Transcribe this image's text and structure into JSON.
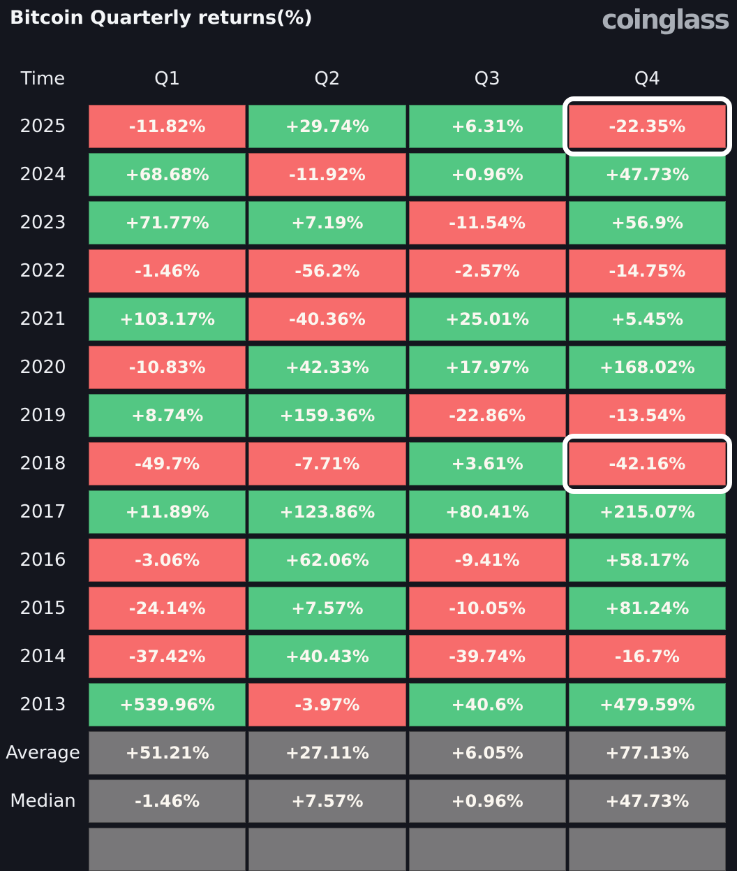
{
  "header": {
    "title": "Bitcoin Quarterly returns(%)",
    "logo": "coinglass"
  },
  "colors": {
    "positive": "#53c783",
    "negative": "#f76c6c",
    "aggregate_gray": "#787779",
    "background": "#14161e",
    "highlight_ring": "#ffffff",
    "cell_text": "#fbf7f0"
  },
  "table": {
    "columns": [
      "Time",
      "Q1",
      "Q2",
      "Q3",
      "Q4"
    ],
    "rows": [
      {
        "label": "2025",
        "values": [
          "-11.82%",
          "+29.74%",
          "+6.31%",
          "-22.35%"
        ],
        "tones": [
          "neg",
          "pos",
          "pos",
          "neg"
        ],
        "highlight": 3
      },
      {
        "label": "2024",
        "values": [
          "+68.68%",
          "-11.92%",
          "+0.96%",
          "+47.73%"
        ],
        "tones": [
          "pos",
          "neg",
          "pos",
          "pos"
        ],
        "highlight": null
      },
      {
        "label": "2023",
        "values": [
          "+71.77%",
          "+7.19%",
          "-11.54%",
          "+56.9%"
        ],
        "tones": [
          "pos",
          "pos",
          "neg",
          "pos"
        ],
        "highlight": null
      },
      {
        "label": "2022",
        "values": [
          "-1.46%",
          "-56.2%",
          "-2.57%",
          "-14.75%"
        ],
        "tones": [
          "neg",
          "neg",
          "neg",
          "neg"
        ],
        "highlight": null
      },
      {
        "label": "2021",
        "values": [
          "+103.17%",
          "-40.36%",
          "+25.01%",
          "+5.45%"
        ],
        "tones": [
          "pos",
          "neg",
          "pos",
          "pos"
        ],
        "highlight": null
      },
      {
        "label": "2020",
        "values": [
          "-10.83%",
          "+42.33%",
          "+17.97%",
          "+168.02%"
        ],
        "tones": [
          "neg",
          "pos",
          "pos",
          "pos"
        ],
        "highlight": null
      },
      {
        "label": "2019",
        "values": [
          "+8.74%",
          "+159.36%",
          "-22.86%",
          "-13.54%"
        ],
        "tones": [
          "pos",
          "pos",
          "neg",
          "neg"
        ],
        "highlight": null
      },
      {
        "label": "2018",
        "values": [
          "-49.7%",
          "-7.71%",
          "+3.61%",
          "-42.16%"
        ],
        "tones": [
          "neg",
          "neg",
          "pos",
          "neg"
        ],
        "highlight": 3
      },
      {
        "label": "2017",
        "values": [
          "+11.89%",
          "+123.86%",
          "+80.41%",
          "+215.07%"
        ],
        "tones": [
          "pos",
          "pos",
          "pos",
          "pos"
        ],
        "highlight": null
      },
      {
        "label": "2016",
        "values": [
          "-3.06%",
          "+62.06%",
          "-9.41%",
          "+58.17%"
        ],
        "tones": [
          "neg",
          "pos",
          "neg",
          "pos"
        ],
        "highlight": null
      },
      {
        "label": "2015",
        "values": [
          "-24.14%",
          "+7.57%",
          "-10.05%",
          "+81.24%"
        ],
        "tones": [
          "neg",
          "pos",
          "neg",
          "pos"
        ],
        "highlight": null
      },
      {
        "label": "2014",
        "values": [
          "-37.42%",
          "+40.43%",
          "-39.74%",
          "-16.7%"
        ],
        "tones": [
          "neg",
          "pos",
          "neg",
          "neg"
        ],
        "highlight": null
      },
      {
        "label": "2013",
        "values": [
          "+539.96%",
          "-3.97%",
          "+40.6%",
          "+479.59%"
        ],
        "tones": [
          "pos",
          "neg",
          "pos",
          "pos"
        ],
        "highlight": null
      },
      {
        "label": "Average",
        "values": [
          "+51.21%",
          "+27.11%",
          "+6.05%",
          "+77.13%"
        ],
        "tones": [
          "neutral",
          "neutral",
          "neutral",
          "neutral"
        ],
        "highlight": null
      },
      {
        "label": "Median",
        "values": [
          "-1.46%",
          "+7.57%",
          "+0.96%",
          "+47.73%"
        ],
        "tones": [
          "neutral",
          "neutral",
          "neutral",
          "neutral"
        ],
        "highlight": null
      },
      {
        "label": "",
        "values": [
          "",
          "",
          "",
          ""
        ],
        "tones": [
          "neutral",
          "neutral",
          "neutral",
          "neutral"
        ],
        "highlight": null,
        "partial": true
      }
    ]
  },
  "chart_data": {
    "type": "heatmap",
    "title": "Bitcoin Quarterly returns(%)",
    "columns": [
      "Q1",
      "Q2",
      "Q3",
      "Q4"
    ],
    "rows": [
      "2025",
      "2024",
      "2023",
      "2022",
      "2021",
      "2020",
      "2019",
      "2018",
      "2017",
      "2016",
      "2015",
      "2014",
      "2013"
    ],
    "values_pct": {
      "2025": [
        -11.82,
        29.74,
        6.31,
        -22.35
      ],
      "2024": [
        68.68,
        -11.92,
        0.96,
        47.73
      ],
      "2023": [
        71.77,
        7.19,
        -11.54,
        56.9
      ],
      "2022": [
        -1.46,
        -56.2,
        -2.57,
        -14.75
      ],
      "2021": [
        103.17,
        -40.36,
        25.01,
        5.45
      ],
      "2020": [
        -10.83,
        42.33,
        17.97,
        168.02
      ],
      "2019": [
        8.74,
        159.36,
        -22.86,
        -13.54
      ],
      "2018": [
        -49.7,
        -7.71,
        3.61,
        -42.16
      ],
      "2017": [
        11.89,
        123.86,
        80.41,
        215.07
      ],
      "2016": [
        -3.06,
        62.06,
        -9.41,
        58.17
      ],
      "2015": [
        -24.14,
        7.57,
        -10.05,
        81.24
      ],
      "2014": [
        -37.42,
        40.43,
        -39.74,
        -16.7
      ],
      "2013": [
        539.96,
        -3.97,
        40.6,
        479.59
      ]
    },
    "average": [
      51.21,
      27.11,
      6.05,
      77.13
    ],
    "median": [
      -1.46,
      7.57,
      0.96,
      47.73
    ],
    "highlighted_cells": [
      {
        "row": "2025",
        "col": "Q4",
        "value": -22.35
      },
      {
        "row": "2018",
        "col": "Q4",
        "value": -42.16
      }
    ],
    "color_rule": "green = positive return, red = negative return, gray = aggregate rows",
    "legend_position": "none",
    "grid": false
  }
}
